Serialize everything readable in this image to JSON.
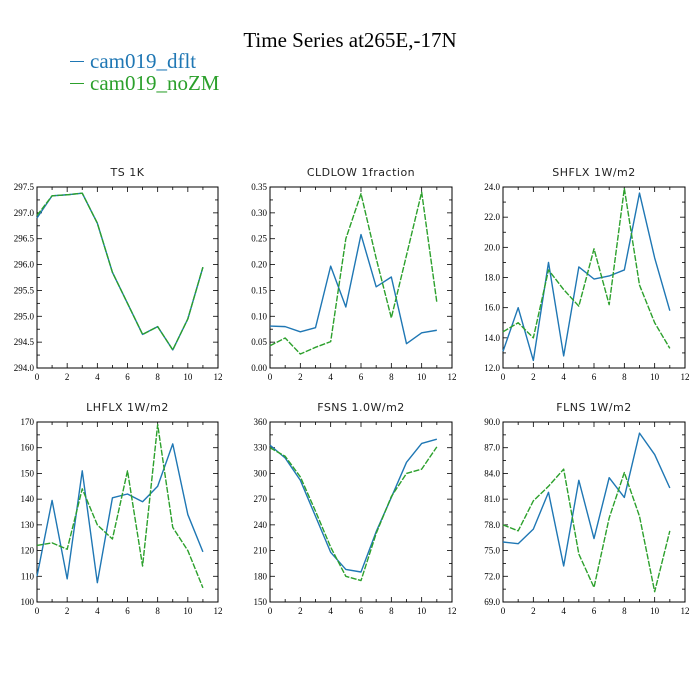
{
  "title": "Time Series at265E,-17N",
  "legend": [
    {
      "label": "cam019_dflt",
      "color": "#1f77b4"
    },
    {
      "label": "cam019_noZM",
      "color": "#2ca02c"
    }
  ],
  "chart_data": [
    {
      "type": "line",
      "title": "TS   1K",
      "xlim": [
        0,
        12
      ],
      "ylim": [
        294.0,
        297.5
      ],
      "x_ticks": [
        "0",
        "2",
        "4",
        "6",
        "8",
        "10",
        "12"
      ],
      "y_ticks": [
        "294.0",
        "294.5",
        "295.0",
        "295.5",
        "296.0",
        "296.5",
        "297.0",
        "297.5"
      ],
      "x": [
        0,
        1,
        2,
        3,
        4,
        5,
        6,
        7,
        8,
        9,
        10,
        11
      ],
      "series": [
        {
          "name": "cam019_dflt",
          "values": [
            296.9,
            297.33,
            297.35,
            297.38,
            296.8,
            295.85,
            295.25,
            294.65,
            294.8,
            294.35,
            294.95,
            295.95
          ]
        },
        {
          "name": "cam019_noZM",
          "values": [
            296.95,
            297.33,
            297.35,
            297.38,
            296.8,
            295.85,
            295.25,
            294.65,
            294.8,
            294.35,
            294.95,
            295.95
          ]
        }
      ]
    },
    {
      "type": "line",
      "title": "CLDLOW   1fraction",
      "xlim": [
        0,
        12
      ],
      "ylim": [
        0.0,
        0.35
      ],
      "x_ticks": [
        "0",
        "2",
        "4",
        "6",
        "8",
        "10",
        "12"
      ],
      "y_ticks": [
        "0.00",
        "0.05",
        "0.10",
        "0.15",
        "0.20",
        "0.25",
        "0.30",
        "0.35"
      ],
      "x": [
        0,
        1,
        2,
        3,
        4,
        5,
        6,
        7,
        8,
        9,
        10,
        11
      ],
      "series": [
        {
          "name": "cam019_dflt",
          "values": [
            0.081,
            0.08,
            0.07,
            0.078,
            0.197,
            0.118,
            0.258,
            0.157,
            0.176,
            0.047,
            0.068,
            0.073
          ]
        },
        {
          "name": "cam019_noZM",
          "values": [
            0.043,
            0.058,
            0.027,
            0.04,
            0.051,
            0.25,
            0.337,
            0.212,
            0.097,
            0.218,
            0.34,
            0.127
          ]
        }
      ]
    },
    {
      "type": "line",
      "title": "SHFLX   1W/m2",
      "xlim": [
        0,
        12
      ],
      "ylim": [
        12.0,
        24.0
      ],
      "x_ticks": [
        "0",
        "2",
        "4",
        "6",
        "8",
        "10",
        "12"
      ],
      "y_ticks": [
        "12.0",
        "14.0",
        "16.0",
        "18.0",
        "20.0",
        "22.0",
        "24.0"
      ],
      "x": [
        0,
        1,
        2,
        3,
        4,
        5,
        6,
        7,
        8,
        9,
        10,
        11
      ],
      "series": [
        {
          "name": "cam019_dflt",
          "values": [
            13.1,
            16.0,
            12.5,
            19.0,
            12.8,
            18.7,
            17.9,
            18.1,
            18.5,
            23.6,
            19.3,
            15.8
          ]
        },
        {
          "name": "cam019_noZM",
          "values": [
            14.4,
            15.0,
            14.0,
            18.5,
            17.2,
            16.1,
            19.9,
            16.2,
            23.9,
            17.5,
            15.0,
            13.3
          ]
        }
      ]
    },
    {
      "type": "line",
      "title": "LHFLX   1W/m2",
      "xlim": [
        0,
        12
      ],
      "ylim": [
        100,
        170
      ],
      "x_ticks": [
        "0",
        "2",
        "4",
        "6",
        "8",
        "10",
        "12"
      ],
      "y_ticks": [
        "100",
        "110",
        "120",
        "130",
        "140",
        "150",
        "160",
        "170"
      ],
      "x": [
        0,
        1,
        2,
        3,
        4,
        5,
        6,
        7,
        8,
        9,
        10,
        11
      ],
      "series": [
        {
          "name": "cam019_dflt",
          "values": [
            110,
            139.5,
            109,
            151,
            107.5,
            140.5,
            142,
            139,
            145,
            161.5,
            134,
            119.5
          ]
        },
        {
          "name": "cam019_noZM",
          "values": [
            122,
            123,
            120.5,
            144,
            130,
            124.5,
            151,
            114,
            169,
            129,
            120,
            105.5
          ]
        }
      ]
    },
    {
      "type": "line",
      "title": "FSNS   1.0W/m2",
      "xlim": [
        0,
        12
      ],
      "ylim": [
        150,
        360
      ],
      "x_ticks": [
        "0",
        "2",
        "4",
        "6",
        "8",
        "10",
        "12"
      ],
      "y_ticks": [
        "150",
        "180",
        "210",
        "240",
        "270",
        "300",
        "330",
        "360"
      ],
      "x": [
        0,
        1,
        2,
        3,
        4,
        5,
        6,
        7,
        8,
        9,
        10,
        11
      ],
      "series": [
        {
          "name": "cam019_dflt",
          "values": [
            333,
            318,
            292,
            250,
            208,
            188,
            185,
            232,
            272,
            313,
            335,
            340
          ]
        },
        {
          "name": "cam019_noZM",
          "values": [
            330,
            320,
            296,
            256,
            214,
            180,
            175,
            230,
            273,
            300,
            305,
            331
          ]
        }
      ]
    },
    {
      "type": "line",
      "title": "FLNS   1W/m2",
      "xlim": [
        0,
        12
      ],
      "ylim": [
        69.0,
        90.0
      ],
      "x_ticks": [
        "0",
        "2",
        "4",
        "6",
        "8",
        "10",
        "12"
      ],
      "y_ticks": [
        "69.0",
        "72.0",
        "75.0",
        "78.0",
        "81.0",
        "84.0",
        "87.0",
        "90.0"
      ],
      "x": [
        0,
        1,
        2,
        3,
        4,
        5,
        6,
        7,
        8,
        9,
        10,
        11
      ],
      "series": [
        {
          "name": "cam019_dflt",
          "values": [
            76.0,
            75.8,
            77.5,
            81.8,
            73.2,
            83.2,
            76.4,
            83.5,
            81.2,
            88.7,
            86.2,
            82.3
          ]
        },
        {
          "name": "cam019_noZM",
          "values": [
            78.0,
            77.3,
            80.8,
            82.5,
            84.5,
            74.6,
            70.7,
            78.8,
            84.1,
            79.0,
            70.2,
            77.3
          ]
        }
      ]
    }
  ]
}
